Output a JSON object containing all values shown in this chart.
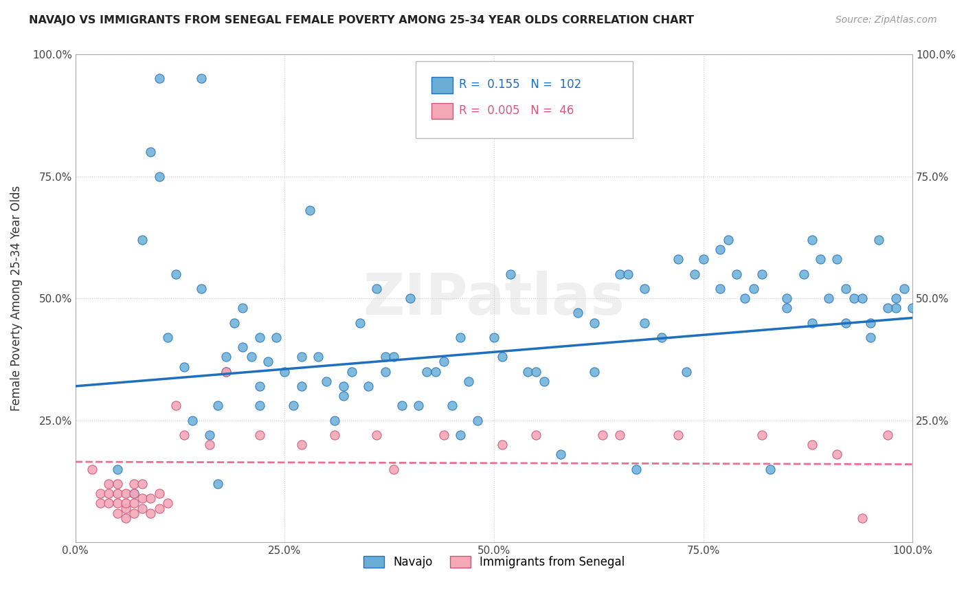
{
  "title": "NAVAJO VS IMMIGRANTS FROM SENEGAL FEMALE POVERTY AMONG 25-34 YEAR OLDS CORRELATION CHART",
  "source": "Source: ZipAtlas.com",
  "ylabel": "Female Poverty Among 25-34 Year Olds",
  "watermark": "ZIPatlas",
  "navajo_R": 0.155,
  "navajo_N": 102,
  "senegal_R": 0.005,
  "senegal_N": 46,
  "xlim": [
    0.0,
    1.0
  ],
  "ylim": [
    0.0,
    1.0
  ],
  "xticks": [
    0.0,
    0.25,
    0.5,
    0.75,
    1.0
  ],
  "yticks": [
    0.0,
    0.25,
    0.5,
    0.75,
    1.0
  ],
  "xticklabels": [
    "0.0%",
    "25.0%",
    "50.0%",
    "75.0%",
    "100.0%"
  ],
  "yticklabels": [
    "",
    "25.0%",
    "50.0%",
    "75.0%",
    "100.0%"
  ],
  "navajo_color": "#6aaed6",
  "senegal_color": "#f4a8b8",
  "navajo_line_color": "#1f6fbf",
  "senegal_line_color": "#e87090",
  "senegal_edge_color": "#cc5577",
  "navajo_scatter_x": [
    0.05,
    0.07,
    0.08,
    0.09,
    0.1,
    0.11,
    0.12,
    0.13,
    0.14,
    0.15,
    0.16,
    0.17,
    0.17,
    0.18,
    0.19,
    0.2,
    0.2,
    0.21,
    0.22,
    0.22,
    0.23,
    0.24,
    0.25,
    0.26,
    0.27,
    0.28,
    0.29,
    0.3,
    0.31,
    0.32,
    0.33,
    0.34,
    0.35,
    0.36,
    0.37,
    0.38,
    0.39,
    0.4,
    0.42,
    0.43,
    0.44,
    0.45,
    0.46,
    0.47,
    0.48,
    0.5,
    0.51,
    0.52,
    0.54,
    0.56,
    0.58,
    0.6,
    0.62,
    0.65,
    0.66,
    0.67,
    0.68,
    0.7,
    0.72,
    0.74,
    0.75,
    0.77,
    0.78,
    0.79,
    0.8,
    0.82,
    0.83,
    0.85,
    0.87,
    0.88,
    0.89,
    0.9,
    0.91,
    0.92,
    0.93,
    0.94,
    0.95,
    0.96,
    0.97,
    0.98,
    0.99,
    1.0,
    0.1,
    0.15,
    0.18,
    0.22,
    0.27,
    0.32,
    0.37,
    0.41,
    0.46,
    0.55,
    0.62,
    0.68,
    0.73,
    0.77,
    0.81,
    0.85,
    0.88,
    0.92,
    0.95,
    0.98
  ],
  "navajo_scatter_y": [
    0.15,
    0.1,
    0.62,
    0.8,
    0.95,
    0.42,
    0.55,
    0.36,
    0.25,
    0.95,
    0.22,
    0.12,
    0.28,
    0.35,
    0.45,
    0.48,
    0.4,
    0.38,
    0.32,
    0.28,
    0.37,
    0.42,
    0.35,
    0.28,
    0.32,
    0.68,
    0.38,
    0.33,
    0.25,
    0.3,
    0.35,
    0.45,
    0.32,
    0.52,
    0.38,
    0.38,
    0.28,
    0.5,
    0.35,
    0.35,
    0.37,
    0.28,
    0.42,
    0.33,
    0.25,
    0.42,
    0.38,
    0.55,
    0.35,
    0.33,
    0.18,
    0.47,
    0.35,
    0.55,
    0.55,
    0.15,
    0.45,
    0.42,
    0.58,
    0.55,
    0.58,
    0.6,
    0.62,
    0.55,
    0.5,
    0.55,
    0.15,
    0.5,
    0.55,
    0.62,
    0.58,
    0.5,
    0.58,
    0.45,
    0.5,
    0.5,
    0.45,
    0.62,
    0.48,
    0.5,
    0.52,
    0.48,
    0.75,
    0.52,
    0.38,
    0.42,
    0.38,
    0.32,
    0.35,
    0.28,
    0.22,
    0.35,
    0.45,
    0.52,
    0.35,
    0.52,
    0.52,
    0.48,
    0.45,
    0.52,
    0.42,
    0.48
  ],
  "senegal_scatter_x": [
    0.02,
    0.03,
    0.03,
    0.04,
    0.04,
    0.04,
    0.05,
    0.05,
    0.05,
    0.05,
    0.06,
    0.06,
    0.06,
    0.06,
    0.07,
    0.07,
    0.07,
    0.07,
    0.08,
    0.08,
    0.08,
    0.09,
    0.09,
    0.1,
    0.1,
    0.11,
    0.12,
    0.13,
    0.16,
    0.18,
    0.22,
    0.27,
    0.31,
    0.36,
    0.38,
    0.44,
    0.51,
    0.55,
    0.63,
    0.65,
    0.72,
    0.82,
    0.88,
    0.91,
    0.94,
    0.97
  ],
  "senegal_scatter_y": [
    0.15,
    0.08,
    0.1,
    0.08,
    0.1,
    0.12,
    0.06,
    0.08,
    0.1,
    0.12,
    0.05,
    0.07,
    0.08,
    0.1,
    0.06,
    0.08,
    0.1,
    0.12,
    0.07,
    0.09,
    0.12,
    0.06,
    0.09,
    0.07,
    0.1,
    0.08,
    0.28,
    0.22,
    0.2,
    0.35,
    0.22,
    0.2,
    0.22,
    0.22,
    0.15,
    0.22,
    0.2,
    0.22,
    0.22,
    0.22,
    0.22,
    0.22,
    0.2,
    0.18,
    0.05,
    0.22
  ],
  "navajo_line_x0": 0.0,
  "navajo_line_y0": 0.32,
  "navajo_line_x1": 1.0,
  "navajo_line_y1": 0.46,
  "senegal_line_x0": 0.0,
  "senegal_line_y0": 0.165,
  "senegal_line_x1": 1.0,
  "senegal_line_y1": 0.16,
  "legend_navajo": "Navajo",
  "legend_senegal": "Immigrants from Senegal",
  "background_color": "#ffffff",
  "grid_color": "#cccccc"
}
